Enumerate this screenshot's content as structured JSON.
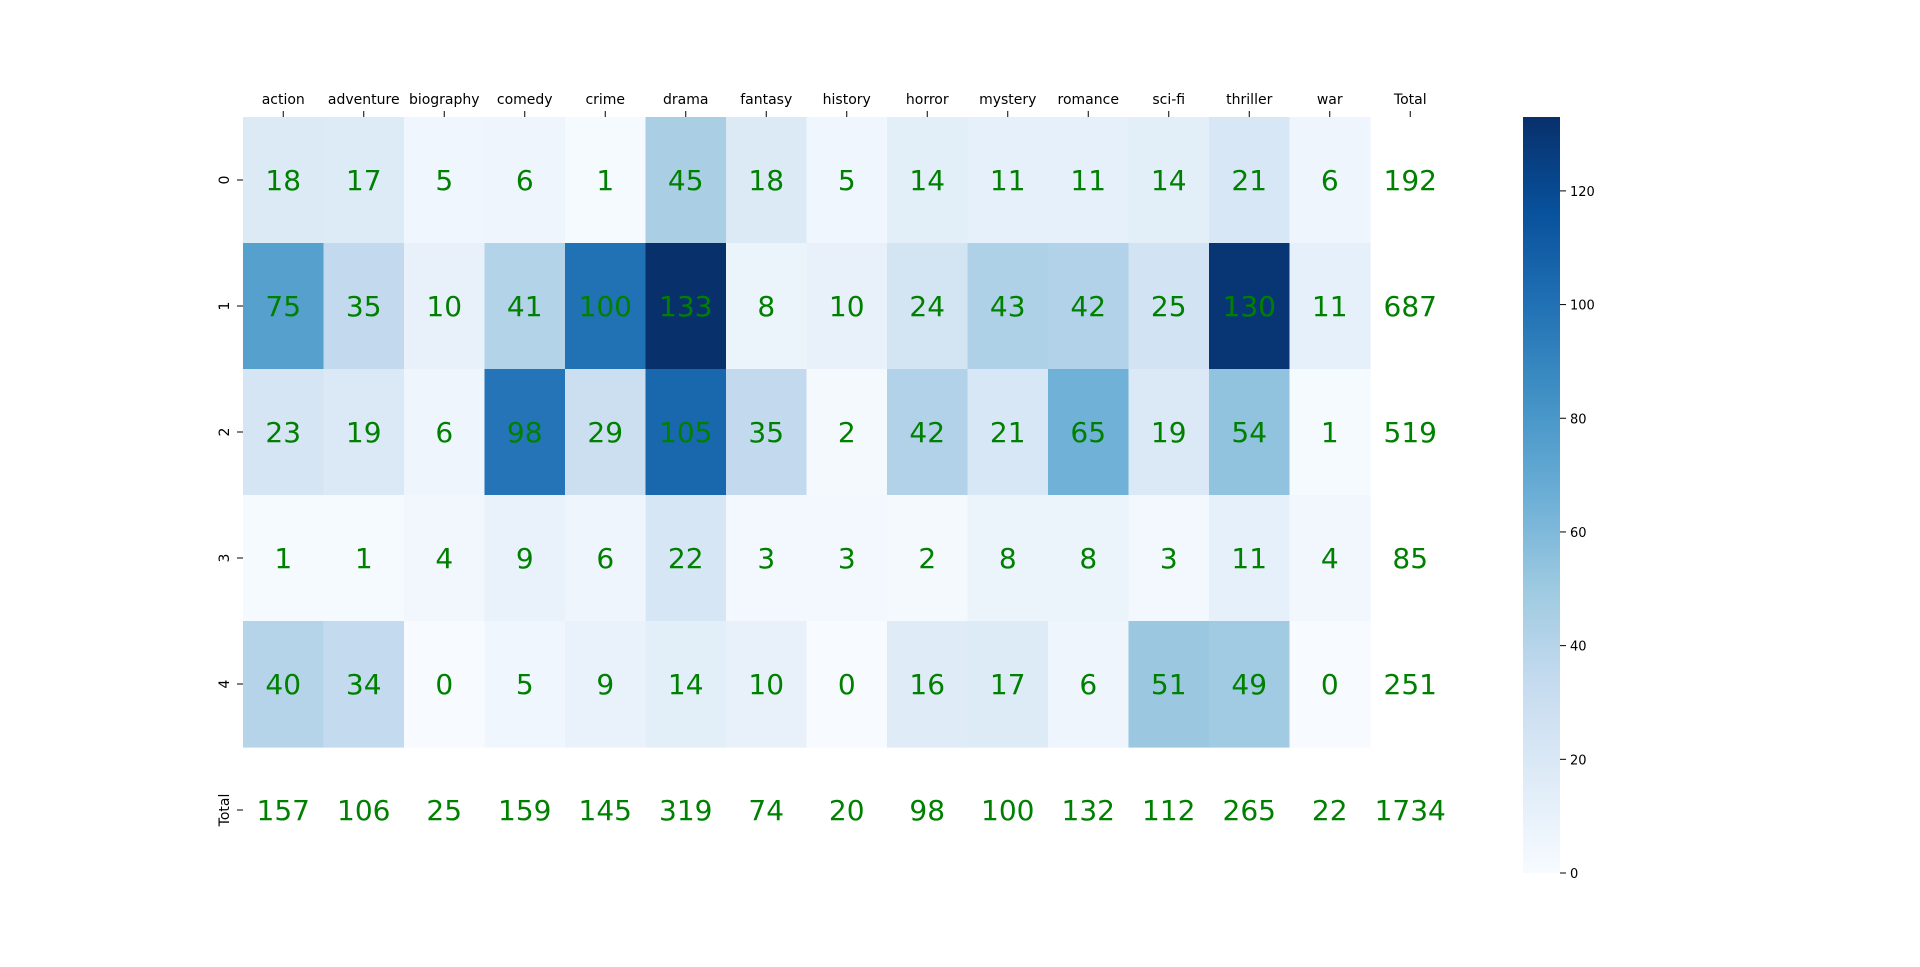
{
  "chart_data": {
    "type": "heatmap",
    "columns": [
      "action",
      "adventure",
      "biography",
      "comedy",
      "crime",
      "drama",
      "fantasy",
      "history",
      "horror",
      "mystery",
      "romance",
      "sci-fi",
      "thriller",
      "war",
      "Total"
    ],
    "rows": [
      "0",
      "1",
      "2",
      "3",
      "4",
      "Total"
    ],
    "values": [
      [
        18,
        17,
        5,
        6,
        1,
        45,
        18,
        5,
        14,
        11,
        11,
        14,
        21,
        6,
        192
      ],
      [
        75,
        35,
        10,
        41,
        100,
        133,
        8,
        10,
        24,
        43,
        42,
        25,
        130,
        11,
        687
      ],
      [
        23,
        19,
        6,
        98,
        29,
        105,
        35,
        2,
        42,
        21,
        65,
        19,
        54,
        1,
        519
      ],
      [
        1,
        1,
        4,
        9,
        6,
        22,
        3,
        3,
        2,
        8,
        8,
        3,
        11,
        4,
        85
      ],
      [
        40,
        34,
        0,
        5,
        9,
        14,
        10,
        0,
        16,
        17,
        6,
        51,
        49,
        0,
        251
      ],
      [
        157,
        106,
        25,
        159,
        145,
        319,
        74,
        20,
        98,
        100,
        132,
        112,
        265,
        22,
        1734
      ]
    ],
    "colored_region": "rows 0-4, columns action-war",
    "colormap": "Blues",
    "vmin": 0,
    "vmax": 133,
    "colorbar_ticks": [
      0,
      20,
      40,
      60,
      80,
      100,
      120
    ],
    "x_tick_position": "top",
    "annotation_color": "#008000",
    "grid": false,
    "legend": "colorbar-right"
  }
}
